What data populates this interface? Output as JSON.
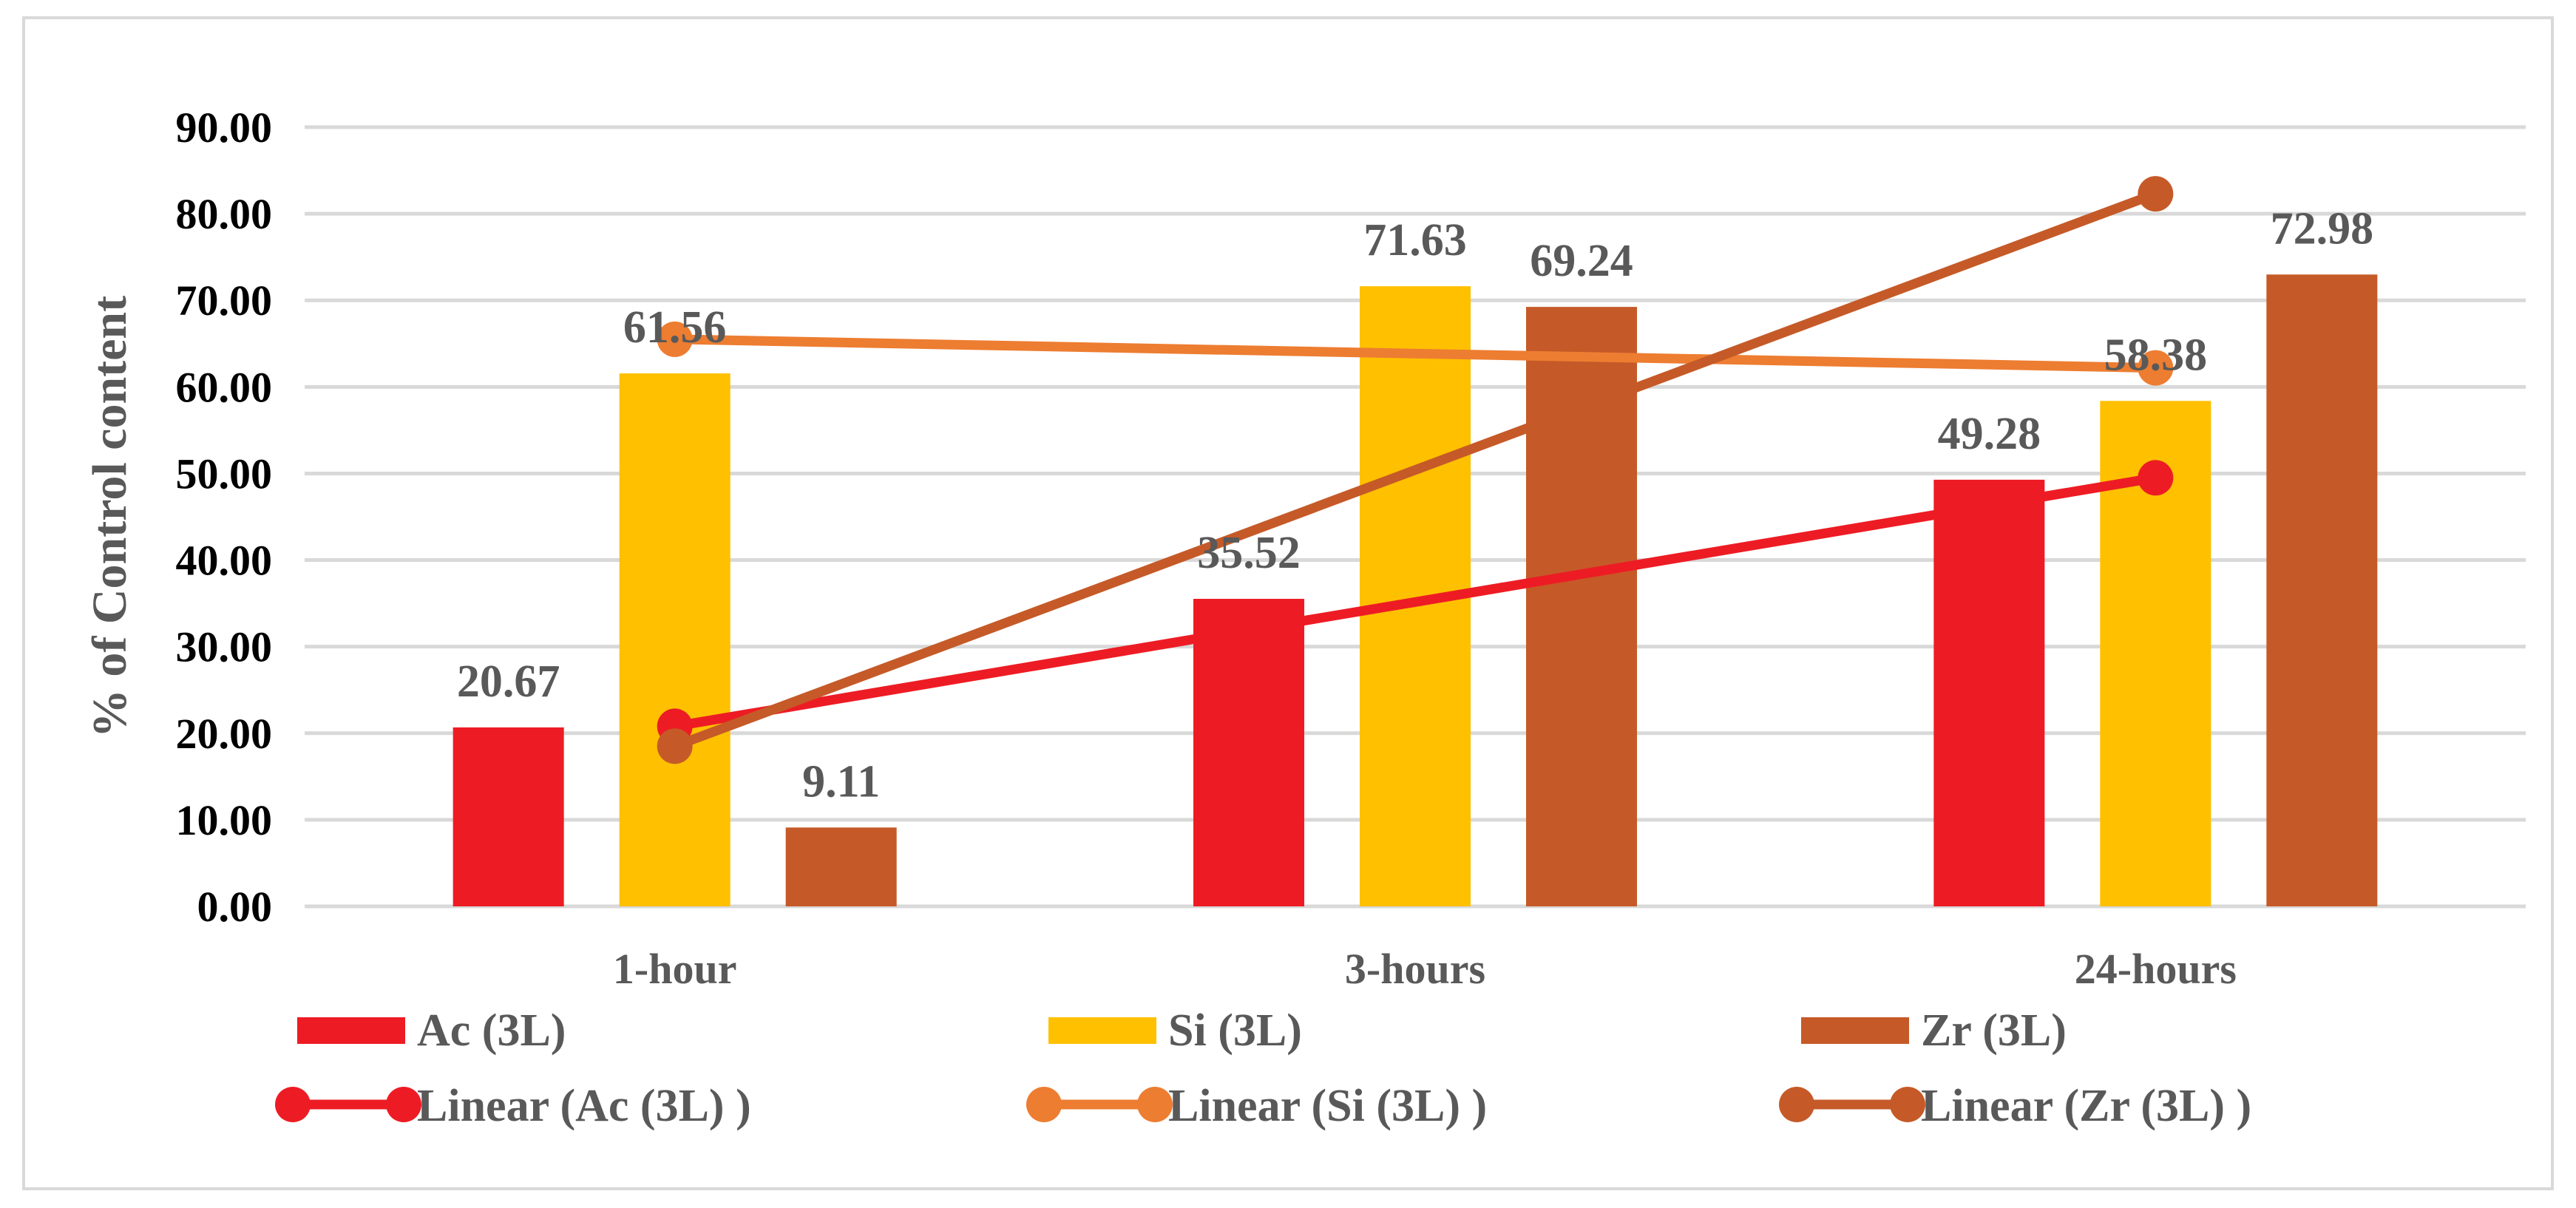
{
  "chart_data": {
    "type": "bar",
    "title": "",
    "xlabel": "",
    "ylabel": "% of Control content",
    "categories": [
      "1-hour",
      "3-hours",
      "24-hours"
    ],
    "ylim": [
      0,
      90
    ],
    "yticks": [
      "0.00",
      "10.00",
      "20.00",
      "30.00",
      "40.00",
      "50.00",
      "60.00",
      "70.00",
      "80.00",
      "90.00"
    ],
    "grid": true,
    "legend_position": "bottom",
    "series": [
      {
        "name": "Ac (3L)",
        "color": "#ED1C24",
        "values": [
          20.67,
          35.52,
          49.28
        ],
        "labels": [
          "20.67",
          "35.52",
          "49.28"
        ]
      },
      {
        "name": "Si (3L)",
        "color": "#FFC000",
        "values": [
          61.56,
          71.63,
          58.38
        ],
        "labels": [
          "61.56",
          "71.63",
          "58.38"
        ]
      },
      {
        "name": "Zr (3L)",
        "color": "#C55A28",
        "values": [
          9.11,
          69.24,
          72.98
        ],
        "labels": [
          "9.11",
          "69.24",
          "72.98"
        ]
      }
    ],
    "trendlines": [
      {
        "name": "Linear (Ac (3L) )",
        "color": "#ED1C24",
        "start": 20.8,
        "end": 49.5
      },
      {
        "name": "Linear (Si (3L) )",
        "color": "#ED7D31",
        "start": 65.5,
        "end": 62.2
      },
      {
        "name": "Linear (Zr (3L) )",
        "color": "#C55A28",
        "start": 18.5,
        "end": 82.3
      }
    ]
  }
}
